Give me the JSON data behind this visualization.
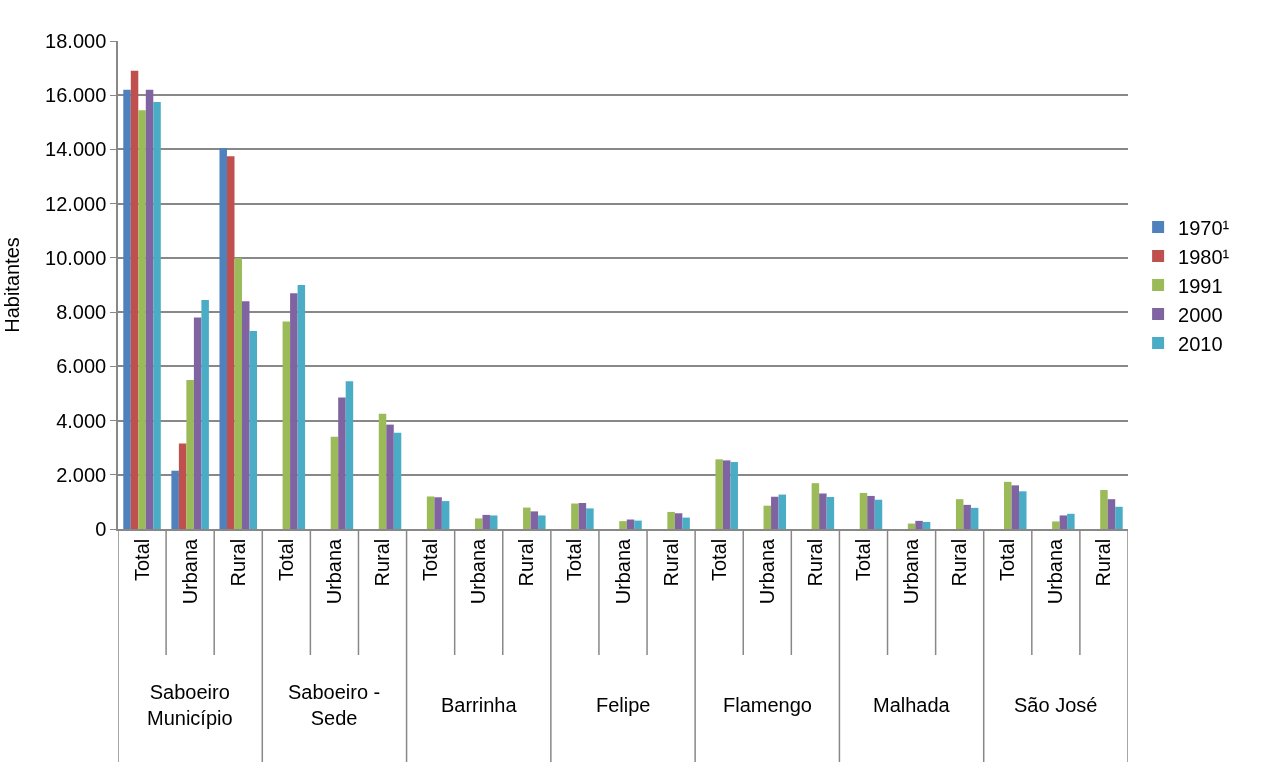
{
  "chart_data": {
    "type": "bar",
    "ylabel": "Habitantes",
    "categories": [
      "Total",
      "Urbana",
      "Rural",
      "Total",
      "Urbana",
      "Rural",
      "Total",
      "Urbana",
      "Rural",
      "Total",
      "Urbana",
      "Rural",
      "Total",
      "Urbana",
      "Rural",
      "Total",
      "Urbana",
      "Rural",
      "Total",
      "Urbana",
      "Rural"
    ],
    "series": [
      {
        "name": "1970¹",
        "color": "#4f81bd",
        "values": [
          16200,
          2150,
          14050,
          null,
          null,
          null,
          null,
          null,
          null,
          null,
          null,
          null,
          null,
          null,
          null,
          null,
          null,
          null,
          null,
          null,
          null
        ]
      },
      {
        "name": "1980¹",
        "color": "#c0504d",
        "values": [
          16900,
          3150,
          13750,
          null,
          null,
          null,
          null,
          null,
          null,
          null,
          null,
          null,
          null,
          null,
          null,
          null,
          null,
          null,
          null,
          null,
          null
        ]
      },
      {
        "name": "1991",
        "color": "#9bbb59",
        "values": [
          15450,
          5500,
          10000,
          7650,
          3400,
          4250,
          1200,
          390,
          790,
          940,
          290,
          630,
          2570,
          860,
          1690,
          1330,
          200,
          1100,
          1740,
          280,
          1440
        ]
      },
      {
        "name": "2000",
        "color": "#8064a2",
        "values": [
          16200,
          7800,
          8400,
          8700,
          4850,
          3850,
          1170,
          520,
          650,
          960,
          350,
          580,
          2530,
          1190,
          1310,
          1220,
          300,
          890,
          1610,
          500,
          1100
        ]
      },
      {
        "name": "2010",
        "color": "#4bacc6",
        "values": [
          15750,
          8450,
          7300,
          9000,
          5450,
          3550,
          1030,
          500,
          500,
          760,
          310,
          420,
          2470,
          1270,
          1180,
          1080,
          260,
          780,
          1390,
          560,
          820
        ]
      }
    ],
    "annotations": [
      "Saboeiro Município",
      "Saboeiro - Sede",
      "Barrinha",
      "Felipe",
      "Flamengo",
      "Malhada",
      "São José"
    ],
    "ylim": [
      0,
      18000
    ],
    "yticks": [
      0,
      {
        "value": 2000,
        "label": "2.000"
      },
      {
        "value": 4000,
        "label": "4.000"
      },
      {
        "value": 6000,
        "label": "6.000"
      },
      {
        "value": 8000,
        "label": "8.000"
      },
      {
        "value": 10000,
        "label": "10.000"
      },
      {
        "value": 12000,
        "label": "12.000"
      },
      {
        "value": 14000,
        "label": "14.000"
      },
      {
        "value": 16000,
        "label": "16.000"
      },
      {
        "value": 18000,
        "label": "18.000"
      }
    ],
    "grid": "y",
    "legend": "right"
  }
}
